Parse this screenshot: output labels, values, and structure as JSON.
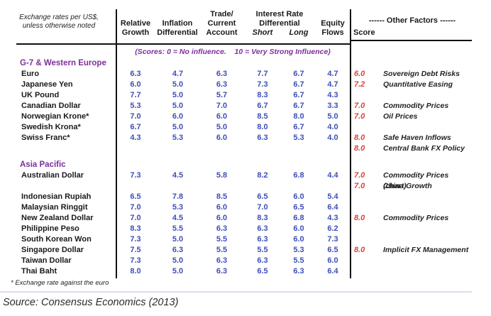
{
  "colors": {
    "purple": "#7d2f9b",
    "blue": "#3d4eb8",
    "red": "#e0413a"
  },
  "header": {
    "exchange_label": "Exchange rates per US$,\nunless otherwise noted",
    "col_relative": "Relative\nGrowth",
    "col_inflation": "Inflation\nDifferential",
    "col_trade": "Trade/\nCurrent\nAccount",
    "col_interest": "Interest Rate\nDifferential",
    "col_short": "Short",
    "col_long": "Long",
    "col_equity": "Equity\nFlows",
    "other_factors": "------ Other Factors ------",
    "score_label": "Score"
  },
  "scores_note": "(Scores: 0 = No influence.    10 = Very Strong Influence)",
  "sections": [
    {
      "title": "G-7 & Western Europe",
      "rows": [
        {
          "name": "Euro",
          "values": [
            "6.3",
            "4.7",
            "6.3",
            "7.7",
            "6.7",
            "4.7"
          ],
          "score": "6.0",
          "factor": "Sovereign Debt Risks"
        },
        {
          "name": "Japanese Yen",
          "values": [
            "6.0",
            "5.0",
            "6.3",
            "7.3",
            "6.7",
            "4.7"
          ],
          "score": "7.2",
          "factor": "Quantitative Easing"
        },
        {
          "name": "UK Pound",
          "values": [
            "7.7",
            "5.0",
            "5.7",
            "8.3",
            "6.7",
            "4.3"
          ],
          "score": "",
          "factor": ""
        },
        {
          "name": "Canadian Dollar",
          "values": [
            "5.3",
            "5.0",
            "7.0",
            "6.7",
            "6.7",
            "3.3"
          ],
          "score": "7.0",
          "factor": "Commodity Prices"
        },
        {
          "name": "Norwegian Krone*",
          "values": [
            "7.0",
            "6.0",
            "6.0",
            "8.5",
            "8.0",
            "5.0"
          ],
          "score": "7.0",
          "factor": "Oil Prices"
        },
        {
          "name": "Swedish Krona*",
          "values": [
            "6.7",
            "5.0",
            "5.0",
            "8.0",
            "6.7",
            "4.0"
          ],
          "score": "",
          "factor": ""
        },
        {
          "name": "Swiss Franc*",
          "values": [
            "4.3",
            "5.3",
            "6.0",
            "6.3",
            "5.3",
            "4.0"
          ],
          "score": "8.0",
          "factor": "Safe Haven Inflows"
        },
        {
          "name": "",
          "values": [],
          "score": "8.0",
          "factor": "Central Bank FX Policy"
        }
      ]
    },
    {
      "title": "Asia Pacific",
      "rows": [
        {
          "name": "Australian Dollar",
          "values": [
            "7.3",
            "4.5",
            "5.8",
            "8.2",
            "6.8",
            "4.4"
          ],
          "score": "7.0",
          "factor": "Commodity Prices (chart)"
        },
        {
          "name": "",
          "values": [],
          "score": "7.0",
          "factor": "China Growth"
        },
        {
          "name": "Indonesian Rupiah",
          "values": [
            "6.5",
            "7.8",
            "8.5",
            "6.5",
            "6.0",
            "5.4"
          ],
          "score": "",
          "factor": ""
        },
        {
          "name": "Malaysian Ringgit",
          "values": [
            "7.0",
            "5.3",
            "6.0",
            "7.0",
            "6.5",
            "6.4"
          ],
          "score": "",
          "factor": ""
        },
        {
          "name": "New Zealand Dollar",
          "values": [
            "7.0",
            "4.5",
            "6.0",
            "8.3",
            "6.8",
            "4.3"
          ],
          "score": "8.0",
          "factor": "Commodity Prices"
        },
        {
          "name": "Philippine Peso",
          "values": [
            "8.3",
            "5.5",
            "6.3",
            "6.3",
            "6.0",
            "6.2"
          ],
          "score": "",
          "factor": ""
        },
        {
          "name": "South Korean Won",
          "values": [
            "7.3",
            "5.0",
            "5.5",
            "6.3",
            "6.0",
            "7.3"
          ],
          "score": "",
          "factor": ""
        },
        {
          "name": "Singapore Dollar",
          "values": [
            "7.5",
            "6.3",
            "5.5",
            "5.5",
            "5.3",
            "6.5"
          ],
          "score": "8.0",
          "factor": "Implicit FX Management"
        },
        {
          "name": "Taiwan Dollar",
          "values": [
            "7.3",
            "5.0",
            "6.3",
            "6.3",
            "5.5",
            "6.0"
          ],
          "score": "",
          "factor": ""
        },
        {
          "name": "Thai Baht",
          "values": [
            "8.0",
            "5.0",
            "6.3",
            "6.5",
            "6.3",
            "6.4"
          ],
          "score": "",
          "factor": ""
        }
      ]
    }
  ],
  "footnote": "* Exchange rate against the euro",
  "source": "Source: Consensus Economics (2013)"
}
